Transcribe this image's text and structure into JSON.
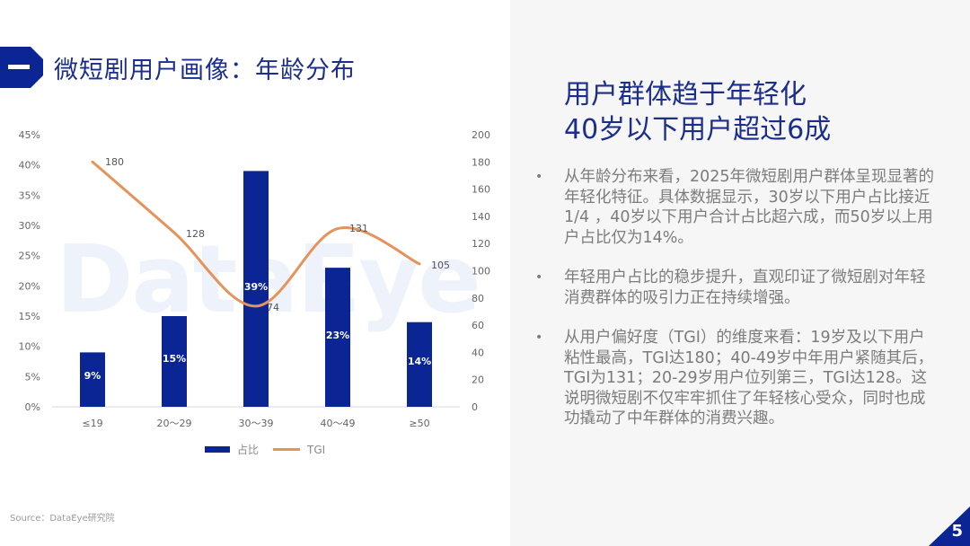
{
  "slide": {
    "section_marker": "一",
    "title": "微短剧用户画像：年龄分布",
    "watermark": "DataEye",
    "source": "Source：DataEye研究院",
    "page_number": "5"
  },
  "summary": {
    "headline_line1": "用户群体趋于年轻化",
    "headline_line2": "40岁以下用户超过6成",
    "bullets": [
      "从年龄分布来看，2025年微短剧用户群体呈现显著的年轻化特征。具体数据显示，30岁以下用户占比接近1/4 ，40岁以下用户合计占比超六成，而50岁以上用户占比仅为14%。",
      "年轻用户占比的稳步提升，直观印证了微短剧对年轻消费群体的吸引力正在持续增强。",
      "从用户偏好度（TGI）的维度来看：19岁及以下用户粘性最高，TGI达180；40-49岁中年用户紧随其后，TGI为131；20-29岁用户位列第三，TGI达128。这说明微短剧不仅牢牢抓住了年轻核心受众，同时也成功撬动了中年群体的消费兴趣。"
    ],
    "bullet_glyph": "•"
  },
  "colors": {
    "brand_blue": "#0b2594",
    "title_blue": "#1b2e8c",
    "tgi_orange": "#e6935b",
    "panel_bg": "#f6f6f7"
  },
  "chart_data": {
    "type": "bar+line",
    "title": "微短剧用户画像：年龄分布",
    "categories": [
      "≤19",
      "20～29",
      "30～39",
      "40～49",
      "≥50"
    ],
    "series": [
      {
        "name": "占比",
        "type": "bar",
        "axis": "left",
        "values": [
          9,
          15,
          39,
          23,
          14
        ],
        "labels": [
          "9%",
          "15%",
          "39%",
          "23%",
          "14%"
        ],
        "color": "#0b2594"
      },
      {
        "name": "TGI",
        "type": "line",
        "axis": "right",
        "smooth": true,
        "values": [
          180,
          128,
          74,
          131,
          105
        ],
        "labels": [
          "180",
          "128",
          "74",
          "131",
          "105"
        ],
        "color": "#e6935b"
      }
    ],
    "left_axis": {
      "ticks": [
        "0%",
        "5%",
        "10%",
        "15%",
        "20%",
        "25%",
        "30%",
        "35%",
        "40%",
        "45%"
      ],
      "range": [
        0,
        45
      ]
    },
    "right_axis": {
      "ticks": [
        "0",
        "20",
        "40",
        "60",
        "80",
        "100",
        "120",
        "140",
        "160",
        "180",
        "200"
      ],
      "range": [
        0,
        200
      ]
    },
    "legend": [
      "占比",
      "TGI"
    ],
    "legend_position": "bottom",
    "grid": false
  }
}
